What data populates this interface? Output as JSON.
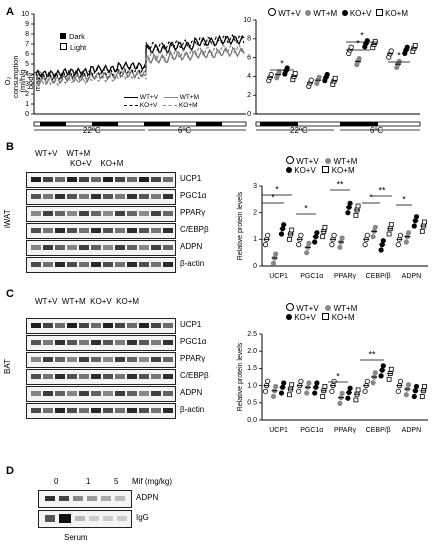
{
  "colors": {
    "black": "#000000",
    "gray": "#808080",
    "light": "#bdbdbd",
    "white": "#ffffff",
    "blot_bg": "#f4f4f4"
  },
  "panels": {
    "a": "A",
    "b": "B",
    "c": "C",
    "d": "D"
  },
  "groups": [
    "WT+V",
    "WT+M",
    "KO+V",
    "KO+M"
  ],
  "panel_a": {
    "timecourse": {
      "ylabel": "O₂ consumption\n(ml/h/g body mass)",
      "yticks": [
        "0",
        "1",
        "2",
        "3",
        "4",
        "5",
        "6",
        "7",
        "8",
        "9",
        "10"
      ],
      "legend": [
        {
          "label": "Dark",
          "icon": "filled-square"
        },
        {
          "label": "Light",
          "icon": "open-square"
        }
      ],
      "series_legend": [
        {
          "label": "WT+V",
          "style": "solid-black"
        },
        {
          "label": "WT+M",
          "style": "solid-gray"
        },
        {
          "label": "KO+V",
          "style": "dashed-black"
        },
        {
          "label": "KO+M",
          "style": "dashed-gray"
        }
      ],
      "temps": [
        "22ºC",
        "6ºC"
      ]
    },
    "dots": {
      "legend": [
        "WT+V",
        "WT+M",
        "KO+V",
        "KO+M"
      ],
      "yticks": [
        "0",
        "1",
        "2",
        "3",
        "4",
        "5",
        "6",
        "7",
        "8",
        "9",
        "10"
      ],
      "temps": [
        "22ºC",
        "6ºC"
      ],
      "sig": [
        "*",
        "*",
        "*",
        "*"
      ]
    }
  },
  "panel_b": {
    "side": "iWAT",
    "bands": [
      "UCP1",
      "PGC1α",
      "PPARγ",
      "C/EBPβ",
      "ADPN",
      "β-actin"
    ],
    "top_groups": [
      "WT+V",
      "WT+M"
    ],
    "bottom_groups": [
      "KO+V",
      "KO+M"
    ],
    "chart_ylabel": "Relative protein levels",
    "yticks": [
      "0",
      "1",
      "2",
      "3"
    ],
    "categories": [
      "UCP1",
      "PGC1α",
      "PPARγ",
      "CEBP/β",
      "ADPN"
    ],
    "sig": [
      "*",
      "*",
      "*",
      "**",
      "*",
      "**",
      "*"
    ]
  },
  "panel_c": {
    "side": "BAT",
    "bands": [
      "UCP1",
      "PGC1α",
      "PPARγ",
      "C/EBPβ",
      "ADPN",
      "β-actin"
    ],
    "chart_ylabel": "Relative protein levels",
    "yticks": [
      "0.0",
      "0.5",
      "1.0",
      "1.5",
      "2.0",
      "2.5"
    ],
    "categories": [
      "UCP1",
      "PGC1α",
      "PPARγ",
      "CEBP/β",
      "ADPN"
    ],
    "sig": [
      "*",
      "**"
    ]
  },
  "panel_d": {
    "dose_title": "Mif (mg/kg)",
    "doses": [
      "0",
      "1",
      "5"
    ],
    "bands": [
      "ADPN",
      "IgG"
    ],
    "bottom": "Serum"
  },
  "chart_data": [
    {
      "type": "line",
      "panel": "A-left",
      "ylabel": "O₂ consumption (ml/h/g body mass)",
      "ylim": [
        0,
        10
      ],
      "series": [
        {
          "name": "WT+V",
          "values_22C": [
            4.0,
            4.2,
            4.5,
            4.8
          ],
          "values_6C": [
            6.5,
            6.8,
            7.2,
            7.4
          ]
        },
        {
          "name": "WT+M",
          "values_22C": [
            3.4,
            3.6,
            3.8,
            4.0
          ],
          "values_6C": [
            5.5,
            5.8,
            6.0,
            6.2
          ]
        },
        {
          "name": "KO+V",
          "values_22C": [
            3.8,
            4.0,
            4.2,
            4.4
          ],
          "values_6C": [
            6.8,
            7.0,
            7.3,
            7.5
          ]
        },
        {
          "name": "KO+M",
          "values_22C": [
            3.2,
            3.4,
            3.6,
            3.8
          ],
          "values_6C": [
            5.8,
            6.0,
            6.3,
            6.5
          ]
        }
      ]
    },
    {
      "type": "scatter",
      "panel": "A-right",
      "ylim": [
        0,
        10
      ],
      "categories": [
        "22ºC dark",
        "22ºC light",
        "6ºC dark",
        "6ºC light"
      ],
      "series": [
        {
          "name": "WT+V",
          "means": [
            3.9,
            3.3,
            6.8,
            6.4
          ]
        },
        {
          "name": "WT+M",
          "means": [
            4.2,
            3.6,
            5.6,
            5.3
          ]
        },
        {
          "name": "KO+V",
          "means": [
            4.6,
            3.9,
            7.5,
            6.8
          ]
        },
        {
          "name": "KO+M",
          "means": [
            4.0,
            3.5,
            7.4,
            7.0
          ]
        }
      ]
    },
    {
      "type": "scatter",
      "panel": "B-right",
      "ylim": [
        0,
        3
      ],
      "categories": [
        "UCP1",
        "PGC1α",
        "PPARγ",
        "CEBP/β",
        "ADPN"
      ],
      "series": [
        {
          "name": "WT+V",
          "means": [
            1.0,
            1.0,
            1.0,
            1.0,
            1.0
          ]
        },
        {
          "name": "WT+M",
          "means": [
            0.3,
            0.7,
            0.9,
            1.3,
            1.1
          ]
        },
        {
          "name": "KO+V",
          "means": [
            1.4,
            1.1,
            2.2,
            0.8,
            1.7
          ]
        },
        {
          "name": "KO+M",
          "means": [
            1.2,
            1.3,
            2.1,
            1.4,
            1.5
          ]
        }
      ]
    },
    {
      "type": "scatter",
      "panel": "C-right",
      "ylim": [
        0,
        2.5
      ],
      "categories": [
        "UCP1",
        "PGC1α",
        "PPARγ",
        "CEBP/β",
        "ADPN"
      ],
      "series": [
        {
          "name": "WT+V",
          "means": [
            1.0,
            1.0,
            1.0,
            1.0,
            1.0
          ]
        },
        {
          "name": "WT+M",
          "means": [
            0.85,
            0.95,
            0.65,
            1.25,
            0.9
          ]
        },
        {
          "name": "KO+V",
          "means": [
            0.95,
            0.95,
            0.8,
            1.45,
            0.85
          ]
        },
        {
          "name": "KO+M",
          "means": [
            0.9,
            0.85,
            0.75,
            1.35,
            0.85
          ]
        }
      ]
    }
  ]
}
